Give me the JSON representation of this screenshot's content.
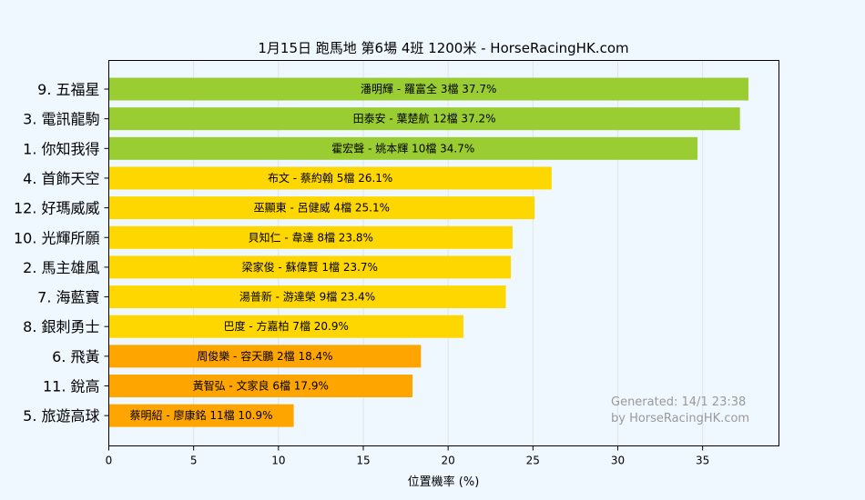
{
  "chart_data": {
    "type": "bar",
    "orientation": "horizontal",
    "title": "1月15日  跑馬地  第6場  4班  1200米 - HorseRacingHK.com",
    "xlabel": "位置機率 (%)",
    "ylabel": "",
    "xlim": [
      0,
      39.5
    ],
    "xticks": [
      0,
      5,
      10,
      15,
      20,
      25,
      30,
      35
    ],
    "grid": "vertical",
    "categories": [
      "9. 五福星",
      "3. 電訊龍駒",
      "1. 你知我得",
      "4. 首飾天空",
      "12. 好瑪威威",
      "10. 光輝所願",
      "2. 馬主雄風",
      "7. 海藍寶",
      "8. 銀刺勇士",
      "6. 飛黃",
      "11. 銳高",
      "5. 旅遊高球"
    ],
    "values": [
      37.7,
      37.2,
      34.7,
      26.1,
      25.1,
      23.8,
      23.7,
      23.4,
      20.9,
      18.4,
      17.9,
      10.9
    ],
    "bar_labels": [
      "潘明輝 - 羅富全 3檔  37.7%",
      "田泰安 - 葉楚航 12檔  37.2%",
      "霍宏聲 - 姚本輝 10檔  34.7%",
      "布文 - 蔡約翰 5檔  26.1%",
      "巫顯東 - 呂健威 4檔  25.1%",
      "貝知仁 - 韋達 8檔  23.8%",
      "梁家俊 - 蘇偉賢 1檔  23.7%",
      "湯普新 - 游達榮 9檔  23.4%",
      "巴度 - 方嘉柏 7檔  20.9%",
      "周俊樂 - 容天鵬 2檔  18.4%",
      "黃智弘 - 文家良 6檔  17.9%",
      "蔡明紹 - 廖康銘 11檔  10.9%"
    ],
    "colors": [
      "#9acd32",
      "#9acd32",
      "#9acd32",
      "#ffd700",
      "#ffd700",
      "#ffd700",
      "#ffd700",
      "#ffd700",
      "#ffd700",
      "#ffa500",
      "#ffa500",
      "#ffa500"
    ],
    "watermark": [
      "Generated: 14/1 23:38",
      "by HorseRacingHK.com"
    ]
  }
}
